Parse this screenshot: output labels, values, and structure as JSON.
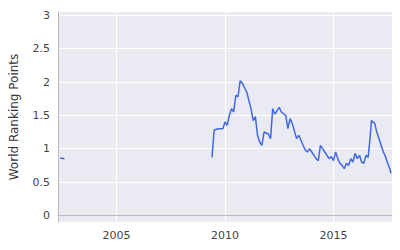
{
  "chart_data": {
    "type": "line",
    "y_label": "World Ranking Points",
    "color": "#4169e1",
    "grid": true,
    "xlim": [
      2002.3,
      2017.7
    ],
    "xticks": [
      2005,
      2010,
      2015
    ],
    "ylim": [
      -0.1,
      3.05
    ],
    "yticks": [
      0,
      0.5,
      1,
      1.5,
      2,
      2.5,
      3
    ],
    "x": [
      2002.4,
      2002.6,
      2006,
      2009.4,
      2009.5,
      2009.7,
      2009.9,
      2010.0,
      2010.1,
      2010.2,
      2010.3,
      2010.4,
      2010.5,
      2010.6,
      2010.7,
      2010.8,
      2011.0,
      2011.2,
      2011.3,
      2011.4,
      2011.5,
      2011.6,
      2011.7,
      2011.8,
      2012.0,
      2012.1,
      2012.2,
      2012.3,
      2012.5,
      2012.6,
      2012.8,
      2012.9,
      2013.0,
      2013.1,
      2013.3,
      2013.4,
      2013.5,
      2013.6,
      2013.7,
      2013.8,
      2013.9,
      2014.0,
      2014.2,
      2014.3,
      2014.4,
      2014.5,
      2014.6,
      2014.8,
      2014.9,
      2015.0,
      2015.1,
      2015.2,
      2015.3,
      2015.4,
      2015.5,
      2015.6,
      2015.7,
      2015.8,
      2015.9,
      2016.0,
      2016.1,
      2016.2,
      2016.3,
      2016.4,
      2016.5,
      2016.6,
      2016.7,
      2016.75,
      2016.9,
      2017.0,
      2017.1,
      2017.2,
      2017.3,
      2017.4,
      2017.5,
      2017.6,
      2017.65
    ],
    "values": [
      0.86,
      0.85,
      null,
      0.87,
      1.28,
      1.3,
      1.3,
      1.4,
      1.35,
      1.5,
      1.6,
      1.55,
      1.8,
      1.78,
      2.02,
      1.98,
      1.85,
      1.6,
      1.42,
      1.48,
      1.2,
      1.1,
      1.05,
      1.25,
      1.22,
      1.15,
      1.6,
      1.52,
      1.62,
      1.55,
      1.5,
      1.3,
      1.45,
      1.38,
      1.15,
      1.2,
      1.13,
      1.05,
      0.98,
      0.95,
      1.0,
      0.95,
      0.85,
      0.82,
      1.05,
      1.0,
      0.95,
      0.85,
      0.88,
      0.82,
      0.95,
      0.85,
      0.78,
      0.75,
      0.7,
      0.78,
      0.75,
      0.85,
      0.8,
      0.93,
      0.85,
      0.9,
      0.8,
      0.78,
      0.9,
      0.87,
      1.2,
      1.42,
      1.38,
      1.25,
      1.15,
      1.05,
      0.95,
      0.88,
      0.78,
      0.7,
      0.63
    ]
  }
}
